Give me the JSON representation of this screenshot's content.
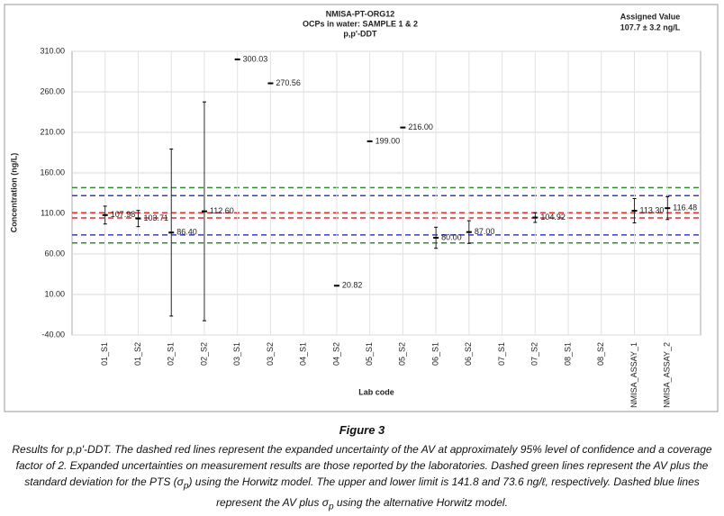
{
  "chart_data": {
    "type": "errorbar",
    "title": [
      "NMISA-PT-ORG12",
      "OCPs in water: SAMPLE 1 & 2",
      "p,p'-DDT"
    ],
    "assigned_value": [
      "Assigned Value",
      "107.7 ± 3.2 ng/L"
    ],
    "y_label": "Concentration (ng/L)",
    "x_label": "Lab code",
    "categories": [
      "01_S1",
      "01_S2",
      "02_S1",
      "02_S2",
      "03_S1",
      "03_S2",
      "04_S1",
      "04_S2",
      "05_S1",
      "05_S2",
      "06_S1",
      "06_S2",
      "07_S1",
      "07_S2",
      "08_S1",
      "08_S2",
      "NMISA_ASSAY_1",
      "NMISA_ASSAY_2"
    ],
    "values": [
      107.98,
      103.71,
      86.4,
      112.6,
      300.03,
      270.56,
      null,
      20.82,
      199.0,
      216.0,
      80.0,
      87.0,
      null,
      104.92,
      null,
      null,
      113.3,
      116.48
    ],
    "value_labels": [
      "107.98",
      "103.71",
      "86.40",
      "112.60",
      "300.03",
      "270.56",
      null,
      "20.82",
      "199.00",
      "216.00",
      "80.00",
      "87.00",
      null,
      "104.92",
      null,
      null,
      "113.30",
      "116.48"
    ],
    "errors": [
      11,
      10,
      103,
      135,
      null,
      null,
      null,
      null,
      null,
      null,
      13,
      14,
      null,
      6,
      null,
      null,
      15,
      14
    ],
    "color": "#000000",
    "reference_lines": [
      {
        "value": 141.8,
        "color": "#2e8b2e"
      },
      {
        "value": 73.6,
        "color": "#2e8b2e"
      },
      {
        "value": 131.9,
        "color": "#3a3ab8"
      },
      {
        "value": 83.5,
        "color": "#3a3ab8"
      },
      {
        "value": 110.9,
        "color": "#e03030"
      },
      {
        "value": 104.5,
        "color": "#e03030"
      }
    ],
    "ylim": [
      -40,
      310
    ],
    "yticks": [
      {
        "value": 310,
        "label": "310.00"
      },
      {
        "value": 260,
        "label": "260.00"
      },
      {
        "value": 210,
        "label": "210.00"
      },
      {
        "value": 160,
        "label": "160.00"
      },
      {
        "value": 110,
        "label": "110.00"
      },
      {
        "value": 60,
        "label": "60.00"
      },
      {
        "value": 10,
        "label": "10.00"
      },
      {
        "value": -40,
        "label": "-40.00"
      }
    ],
    "grid": true
  },
  "caption": {
    "figure": "Figure 3",
    "text": [
      "Results for p,p'-DDT. The dashed red lines represent the expanded uncertainty of the AV at approximately 95% level of confidence and a coverage factor of 2. Expanded uncertainties on measurement results are those reported by the laboratories. Dashed green lines represent the AV plus the standard deviation for the PTS (σ",
      "p",
      ") using the Horwitz model. The upper and lower limit is 141.8 and 73.6 ng/ℓ, respectively. Dashed blue lines represent the AV plus σ",
      "p",
      " using the alternative Horwitz model."
    ]
  }
}
